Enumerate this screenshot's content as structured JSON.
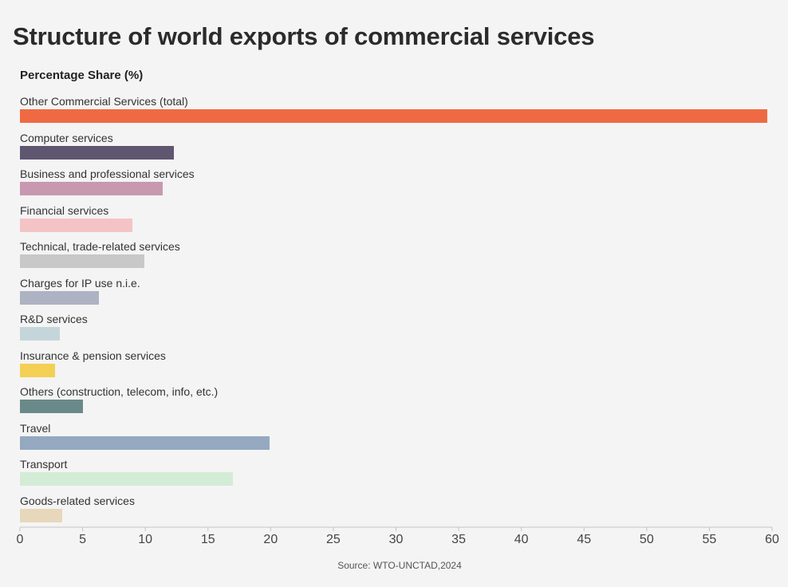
{
  "chart_data": {
    "type": "bar",
    "orientation": "horizontal",
    "title": "Structure of world exports of commercial services",
    "subtitle": "Percentage Share (%)",
    "categories": [
      "Other Commercial Services (total)",
      "Computer services",
      "Business and professional services",
      "Financial services",
      "Technical, trade-related services",
      "Charges for IP use n.i.e.",
      "R&D services",
      "Insurance & pension services",
      "Others (construction, telecom, info, etc.)",
      "Travel",
      "Transport",
      "Goods-related services"
    ],
    "values": [
      59.6,
      12.3,
      11.4,
      9.0,
      9.9,
      6.3,
      3.2,
      2.8,
      5.0,
      19.9,
      17.0,
      3.4
    ],
    "colors": [
      "#ef6a42",
      "#5f5670",
      "#c898b0",
      "#f4c3c6",
      "#c8c8c8",
      "#adb3c3",
      "#c5d6db",
      "#f4cf55",
      "#698a89",
      "#94a9c0",
      "#d3ecd6",
      "#e7d8bb"
    ],
    "xlim": [
      0,
      60
    ],
    "xticks": [
      0,
      5,
      10,
      15,
      20,
      25,
      30,
      35,
      40,
      45,
      50,
      55,
      60
    ],
    "xlabel": "",
    "ylabel": "",
    "grid": false,
    "legend": "none"
  },
  "source": "Source: WTO-UNCTAD,2024"
}
